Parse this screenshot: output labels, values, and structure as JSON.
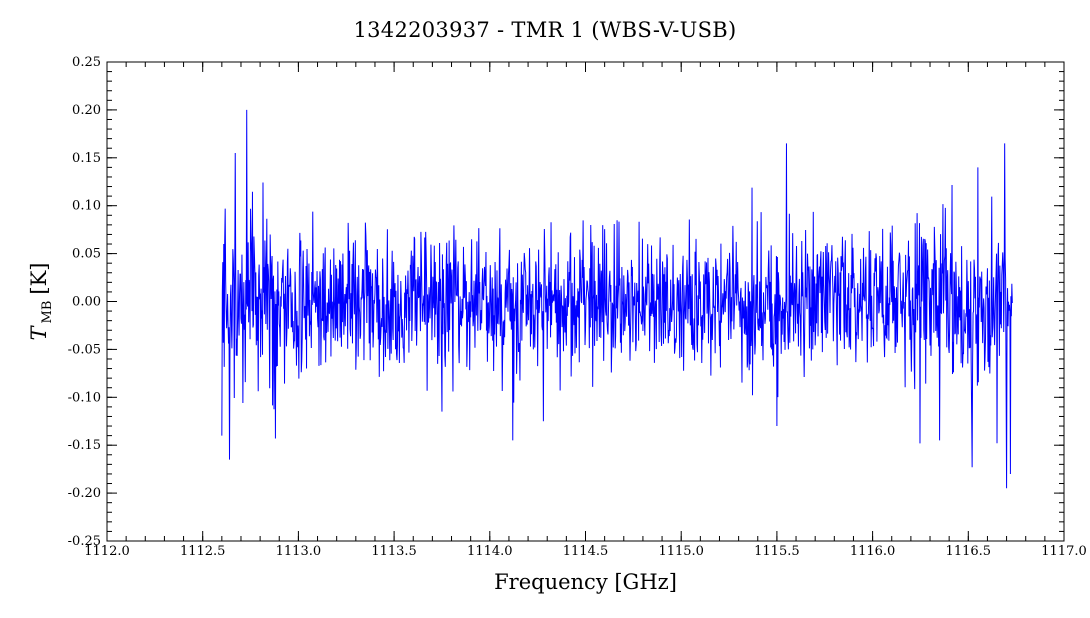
{
  "chart_data": {
    "type": "line",
    "title": "1342203937 - TMR 1 (WBS-V-USB)",
    "xlabel": "Frequency [GHz]",
    "ylabel_symbol": "T",
    "ylabel_subscript": "MB",
    "ylabel_unit": "[K]",
    "xlim": [
      1112.0,
      1117.0
    ],
    "ylim": [
      -0.25,
      0.25
    ],
    "x_ticks": [
      "1112.0",
      "1112.5",
      "1113.0",
      "1113.5",
      "1114.0",
      "1114.5",
      "1115.0",
      "1115.5",
      "1116.0",
      "1116.5",
      "1117.0"
    ],
    "y_ticks": [
      "0.25",
      "0.20",
      "0.15",
      "0.10",
      "0.05",
      "0.00",
      "-0.05",
      "-0.10",
      "-0.15",
      "-0.20",
      "-0.25"
    ],
    "grid": false,
    "series": [
      {
        "color": "#0000ff",
        "x_start": 1112.6,
        "x_end": 1116.73,
        "x_step": 0.0025,
        "noise_rms": 0.035,
        "notable_points": [
          [
            1112.6,
            -0.14
          ],
          [
            1112.61,
            0.06
          ],
          [
            1112.64,
            -0.165
          ],
          [
            1112.67,
            0.155
          ],
          [
            1112.73,
            0.2
          ],
          [
            1112.88,
            -0.143
          ],
          [
            1113.75,
            -0.115
          ],
          [
            1114.12,
            -0.145
          ],
          [
            1114.28,
            -0.125
          ],
          [
            1115.55,
            0.165
          ],
          [
            1115.5,
            -0.13
          ],
          [
            1116.35,
            -0.145
          ],
          [
            1116.52,
            -0.173
          ],
          [
            1116.55,
            0.14
          ],
          [
            1116.65,
            -0.148
          ],
          [
            1116.69,
            0.165
          ],
          [
            1116.7,
            -0.195
          ],
          [
            1116.72,
            -0.18
          ]
        ]
      }
    ]
  }
}
